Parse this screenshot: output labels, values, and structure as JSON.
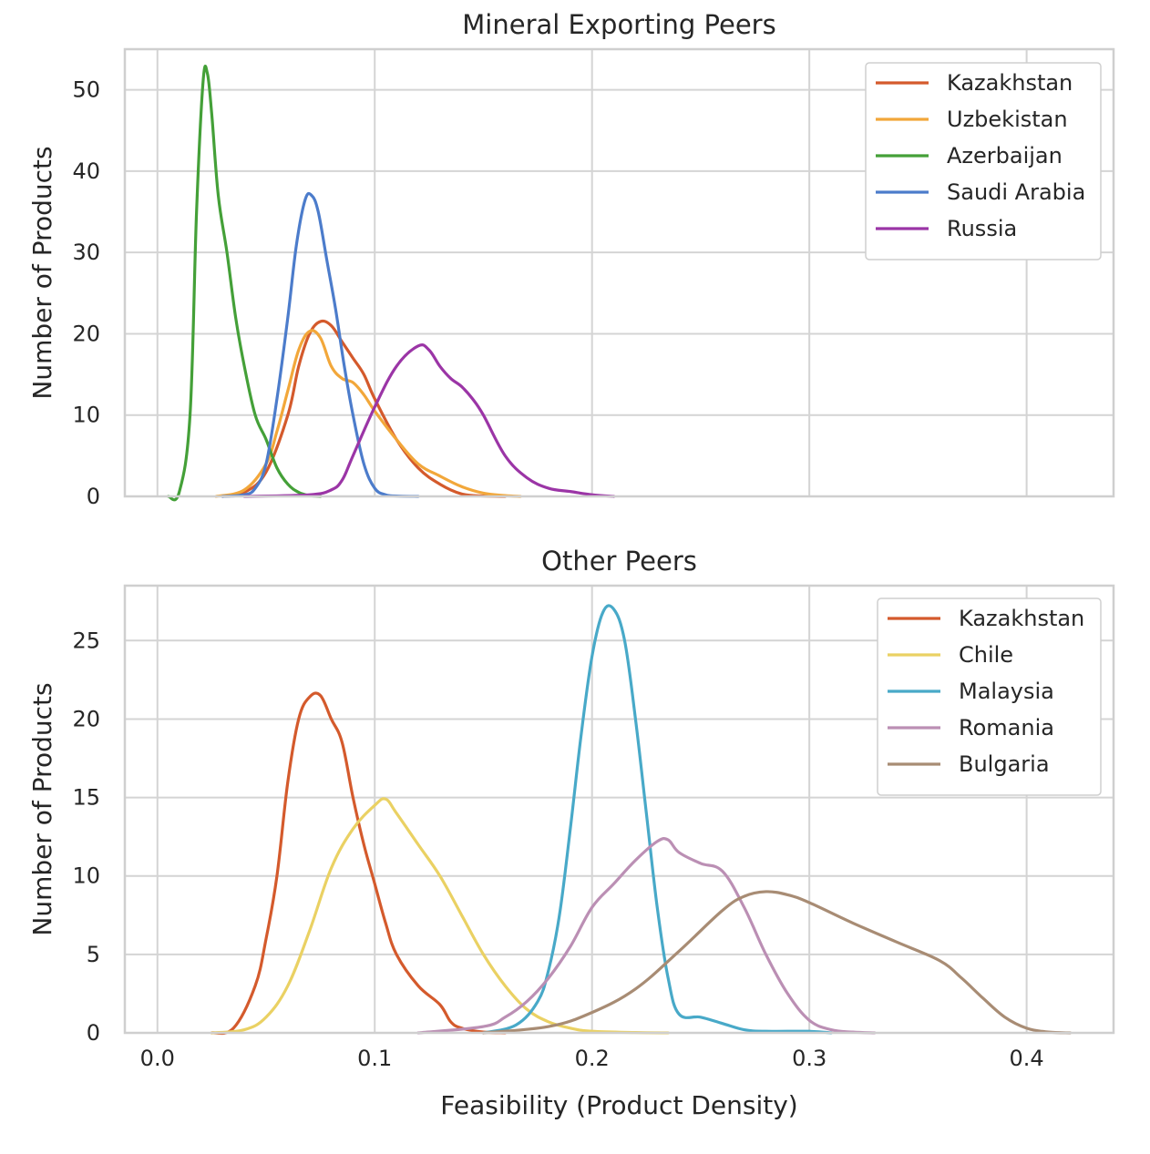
{
  "chart_data": [
    {
      "type": "line",
      "title": "Mineral Exporting Peers",
      "xlabel": "",
      "ylabel": "Number of Products",
      "xlim": [
        -0.015,
        0.44
      ],
      "ylim": [
        0,
        55
      ],
      "xticks": [
        0.0,
        0.1,
        0.2,
        0.3,
        0.4
      ],
      "xtick_labels": [
        "",
        "",
        "",
        "",
        ""
      ],
      "yticks": [
        0,
        10,
        20,
        30,
        40,
        50
      ],
      "ytick_labels": [
        "0",
        "10",
        "20",
        "30",
        "40",
        "50"
      ],
      "grid": true,
      "legend_position": "top-right",
      "series": [
        {
          "name": "Kazakhstan",
          "color": "#d45a2c",
          "x": [
            0.03,
            0.04,
            0.05,
            0.06,
            0.065,
            0.07,
            0.075,
            0.08,
            0.085,
            0.09,
            0.095,
            0.1,
            0.11,
            0.12,
            0.13,
            0.14,
            0.15,
            0.16
          ],
          "y": [
            0,
            0.5,
            3,
            10,
            16,
            20,
            21.5,
            21,
            19,
            17,
            15,
            12,
            7,
            3.5,
            1.5,
            0.3,
            0.05,
            0
          ]
        },
        {
          "name": "Uzbekistan",
          "color": "#f2a73a",
          "x": [
            0.027,
            0.04,
            0.05,
            0.055,
            0.06,
            0.065,
            0.07,
            0.075,
            0.08,
            0.085,
            0.09,
            0.095,
            0.1,
            0.11,
            0.12,
            0.13,
            0.14,
            0.15,
            0.16,
            0.167
          ],
          "y": [
            0,
            0.8,
            4,
            8,
            13,
            18,
            20.3,
            19.5,
            16,
            14.5,
            14,
            12.5,
            10.5,
            7,
            4,
            2.5,
            1.2,
            0.4,
            0.1,
            0
          ]
        },
        {
          "name": "Azerbaijan",
          "color": "#44a038",
          "x": [
            0.005,
            0.01,
            0.015,
            0.018,
            0.021,
            0.023,
            0.025,
            0.028,
            0.032,
            0.036,
            0.04,
            0.045,
            0.05,
            0.055,
            0.06,
            0.065,
            0.07,
            0.075
          ],
          "y": [
            0,
            0.5,
            10,
            35,
            51,
            52,
            47,
            37,
            30,
            22,
            16,
            10,
            7,
            3.5,
            1.5,
            0.5,
            0.1,
            0
          ]
        },
        {
          "name": "Saudi Arabia",
          "color": "#4c7ccb",
          "x": [
            0.03,
            0.04,
            0.045,
            0.05,
            0.055,
            0.06,
            0.064,
            0.068,
            0.071,
            0.074,
            0.078,
            0.082,
            0.086,
            0.09,
            0.095,
            0.1,
            0.105,
            0.11,
            0.12
          ],
          "y": [
            0,
            0.2,
            1,
            4,
            12,
            22,
            31,
            36.5,
            37,
            35,
            29,
            23,
            16,
            10,
            4,
            1,
            0.2,
            0.05,
            0
          ]
        },
        {
          "name": "Russia",
          "color": "#9b35a6",
          "x": [
            0.04,
            0.07,
            0.08,
            0.085,
            0.09,
            0.1,
            0.11,
            0.12,
            0.125,
            0.13,
            0.135,
            0.14,
            0.145,
            0.15,
            0.16,
            0.17,
            0.18,
            0.19,
            0.2,
            0.21
          ],
          "y": [
            0,
            0.2,
            0.8,
            2,
            5,
            11,
            16,
            18.5,
            18,
            16,
            14.5,
            13.5,
            12,
            10,
            5,
            2.3,
            1,
            0.6,
            0.2,
            0
          ]
        }
      ]
    },
    {
      "type": "line",
      "title": "Other Peers",
      "xlabel": "Feasibility (Product Density)",
      "ylabel": "Number of Products",
      "xlim": [
        -0.015,
        0.44
      ],
      "ylim": [
        0,
        28.5
      ],
      "xticks": [
        0.0,
        0.1,
        0.2,
        0.3,
        0.4
      ],
      "xtick_labels": [
        "0.0",
        "0.1",
        "0.2",
        "0.3",
        "0.4"
      ],
      "yticks": [
        0,
        5,
        10,
        15,
        20,
        25
      ],
      "ytick_labels": [
        "0",
        "5",
        "10",
        "15",
        "20",
        "25"
      ],
      "grid": true,
      "legend_position": "top-right",
      "series": [
        {
          "name": "Kazakhstan",
          "color": "#d45a2c",
          "x": [
            0.025,
            0.035,
            0.045,
            0.05,
            0.055,
            0.06,
            0.065,
            0.07,
            0.075,
            0.08,
            0.085,
            0.09,
            0.095,
            0.1,
            0.105,
            0.11,
            0.12,
            0.13,
            0.135,
            0.14,
            0.15,
            0.16
          ],
          "y": [
            0,
            0.3,
            3,
            6,
            10,
            16,
            20,
            21.4,
            21.5,
            20,
            18.5,
            15,
            12,
            9.5,
            7,
            5,
            3,
            1.8,
            0.7,
            0.3,
            0.05,
            0
          ]
        },
        {
          "name": "Chile",
          "color": "#ead163",
          "x": [
            0.025,
            0.04,
            0.05,
            0.06,
            0.07,
            0.08,
            0.09,
            0.1,
            0.105,
            0.11,
            0.12,
            0.13,
            0.14,
            0.15,
            0.16,
            0.17,
            0.18,
            0.19,
            0.2,
            0.22,
            0.235
          ],
          "y": [
            0,
            0.2,
            1,
            3,
            6.5,
            10.5,
            13,
            14.5,
            14.9,
            14,
            12,
            10,
            7.5,
            5,
            3,
            1.5,
            0.7,
            0.3,
            0.1,
            0.02,
            0
          ]
        },
        {
          "name": "Malaysia",
          "color": "#48a9c8",
          "x": [
            0.15,
            0.165,
            0.175,
            0.18,
            0.185,
            0.19,
            0.195,
            0.2,
            0.205,
            0.21,
            0.215,
            0.22,
            0.225,
            0.23,
            0.235,
            0.24,
            0.25,
            0.26,
            0.27,
            0.28,
            0.3,
            0.31
          ],
          "y": [
            0,
            0.5,
            2,
            4,
            7.5,
            13,
            19,
            24,
            26.8,
            27,
            25,
            20,
            14,
            8,
            3.5,
            1.2,
            1,
            0.6,
            0.2,
            0.1,
            0.1,
            0
          ]
        },
        {
          "name": "Romania",
          "color": "#bb8fb4",
          "x": [
            0.12,
            0.15,
            0.16,
            0.17,
            0.18,
            0.19,
            0.2,
            0.21,
            0.22,
            0.23,
            0.235,
            0.24,
            0.25,
            0.26,
            0.27,
            0.28,
            0.29,
            0.3,
            0.31,
            0.32,
            0.33
          ],
          "y": [
            0,
            0.4,
            1,
            2,
            3.5,
            5.5,
            8,
            9.5,
            11,
            12.2,
            12.3,
            11.5,
            10.8,
            10.3,
            8,
            5,
            2.5,
            0.8,
            0.2,
            0.05,
            0
          ]
        },
        {
          "name": "Bulgaria",
          "color": "#a88c74",
          "x": [
            0.15,
            0.18,
            0.2,
            0.22,
            0.24,
            0.26,
            0.27,
            0.28,
            0.29,
            0.3,
            0.32,
            0.34,
            0.36,
            0.37,
            0.38,
            0.39,
            0.4,
            0.41,
            0.42
          ],
          "y": [
            0,
            0.4,
            1.3,
            2.8,
            5.2,
            7.8,
            8.7,
            9,
            8.8,
            8.3,
            7,
            5.8,
            4.6,
            3.5,
            2.2,
            1,
            0.3,
            0.05,
            0
          ]
        }
      ]
    }
  ]
}
